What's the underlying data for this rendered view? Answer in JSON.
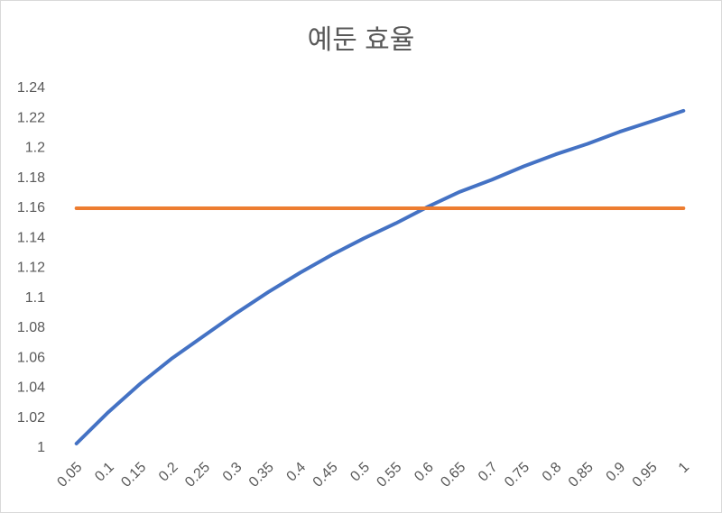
{
  "chart_data": {
    "type": "line",
    "title": "예둔 효율",
    "categories": [
      "0.05",
      "0.1",
      "0.15",
      "0.2",
      "0.25",
      "0.3",
      "0.35",
      "0.4",
      "0.45",
      "0.5",
      "0.55",
      "0.6",
      "0.65",
      "0.7",
      "0.75",
      "0.8",
      "0.85",
      "0.9",
      "0.95",
      "1"
    ],
    "series": [
      {
        "color": "#4472c4",
        "values": [
          1.003,
          1.024,
          1.043,
          1.06,
          1.075,
          1.09,
          1.104,
          1.117,
          1.129,
          1.14,
          1.15,
          1.161,
          1.171,
          1.179,
          1.188,
          1.196,
          1.203,
          1.211,
          1.218,
          1.225
        ]
      },
      {
        "color": "#ed7d31",
        "values": [
          1.16,
          1.16,
          1.16,
          1.16,
          1.16,
          1.16,
          1.16,
          1.16,
          1.16,
          1.16,
          1.16,
          1.16,
          1.16,
          1.16,
          1.16,
          1.16,
          1.16,
          1.16,
          1.16,
          1.16
        ]
      }
    ],
    "ylim": [
      1,
      1.24
    ],
    "yticks": [
      1,
      1.02,
      1.04,
      1.06,
      1.08,
      1.1,
      1.12,
      1.14,
      1.16,
      1.18,
      1.2,
      1.22,
      1.24
    ],
    "grid": false
  }
}
